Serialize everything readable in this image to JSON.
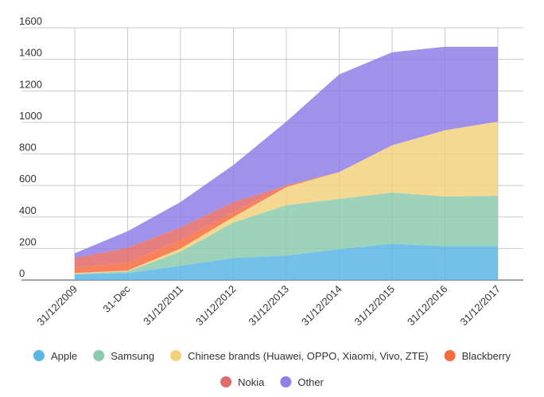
{
  "chart_data": {
    "type": "area",
    "stacked": true,
    "categories": [
      "31/12/2009",
      "31-Dec",
      "31/12/2011",
      "31/12/2012",
      "31/12/2013",
      "31/12/2014",
      "31/12/2015",
      "31/12/2016",
      "31/12/2017"
    ],
    "series": [
      {
        "name": "Apple",
        "color": "#5bb5e8",
        "values": [
          35,
          45,
          90,
          140,
          155,
          195,
          230,
          215,
          215
        ]
      },
      {
        "name": "Samsung",
        "color": "#8ccbae",
        "values": [
          5,
          10,
          90,
          225,
          320,
          320,
          325,
          315,
          320
        ]
      },
      {
        "name": "Chinese brands (Huawei, OPPO, Xiaomi, Vivo, ZTE)",
        "color": "#f3d27d",
        "values": [
          5,
          5,
          20,
          35,
          115,
          170,
          300,
          420,
          470
        ]
      },
      {
        "name": "Blackberry",
        "color": "#f76c3e",
        "values": [
          35,
          50,
          55,
          30,
          10,
          0,
          0,
          0,
          0
        ]
      },
      {
        "name": "Nokia",
        "color": "#e26a6a",
        "values": [
          60,
          95,
          80,
          65,
          0,
          0,
          0,
          0,
          0
        ]
      },
      {
        "name": "Other",
        "color": "#8f7fe8",
        "values": [
          30,
          105,
          160,
          235,
          405,
          620,
          590,
          530,
          475
        ]
      }
    ],
    "ylim": [
      0,
      1600
    ],
    "yticks": [
      "0",
      "200",
      "400",
      "600",
      "800",
      "1000",
      "1200",
      "1400",
      "1600"
    ],
    "title": "",
    "xlabel": "",
    "ylabel": "",
    "grid": true,
    "legend_position": "bottom"
  }
}
